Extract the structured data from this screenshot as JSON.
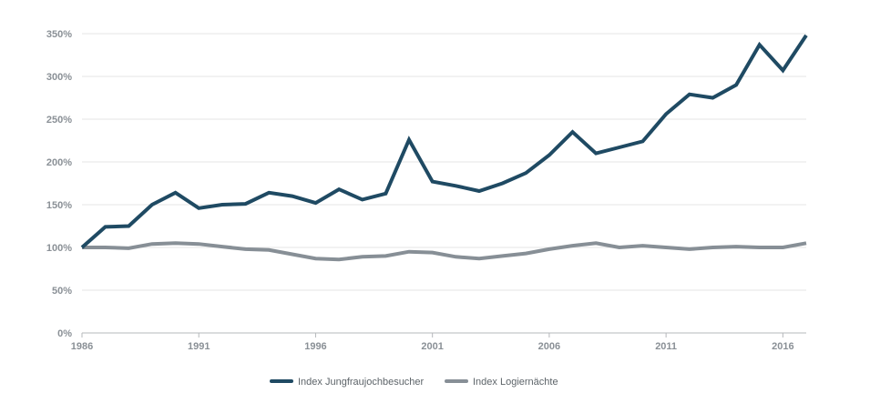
{
  "chart_data": {
    "type": "line",
    "title": "",
    "xlabel": "",
    "ylabel": "",
    "x": [
      1986,
      1987,
      1988,
      1989,
      1990,
      1991,
      1992,
      1993,
      1994,
      1995,
      1996,
      1997,
      1998,
      1999,
      2000,
      2001,
      2002,
      2003,
      2004,
      2005,
      2006,
      2007,
      2008,
      2009,
      2010,
      2011,
      2012,
      2013,
      2014,
      2015,
      2016,
      2017
    ],
    "x_ticks": [
      {
        "value": 1986,
        "label": "1986"
      },
      {
        "value": 1991,
        "label": "1991"
      },
      {
        "value": 1996,
        "label": "1996"
      },
      {
        "value": 2001,
        "label": "2001"
      },
      {
        "value": 2006,
        "label": "2006"
      },
      {
        "value": 2011,
        "label": "2011"
      },
      {
        "value": 2016,
        "label": "2016"
      }
    ],
    "y_ticks": [
      {
        "value": 0,
        "label": "0%"
      },
      {
        "value": 50,
        "label": "50%"
      },
      {
        "value": 100,
        "label": "100%"
      },
      {
        "value": 150,
        "label": "150%"
      },
      {
        "value": 200,
        "label": "200%"
      },
      {
        "value": 250,
        "label": "250%"
      },
      {
        "value": 300,
        "label": "300%"
      },
      {
        "value": 350,
        "label": "350%"
      }
    ],
    "xlim": [
      1986,
      2017
    ],
    "ylim": [
      0,
      350
    ],
    "grid": true,
    "legend_position": "bottom",
    "series": [
      {
        "name": "Index Jungfraujochbesucher",
        "color": "#1f4a63",
        "values": [
          100,
          124,
          125,
          150,
          164,
          146,
          150,
          151,
          164,
          160,
          152,
          168,
          156,
          163,
          226,
          177,
          172,
          166,
          175,
          187,
          208,
          235,
          210,
          217,
          224,
          256,
          279,
          275,
          290,
          337,
          307,
          348
        ]
      },
      {
        "name": "Index Logiernächte",
        "color": "#878f96",
        "values": [
          100,
          100,
          99,
          104,
          105,
          104,
          101,
          98,
          97,
          92,
          87,
          86,
          89,
          90,
          95,
          94,
          89,
          87,
          90,
          93,
          98,
          102,
          105,
          100,
          102,
          100,
          98,
          100,
          101,
          100,
          100,
          105
        ]
      }
    ]
  }
}
